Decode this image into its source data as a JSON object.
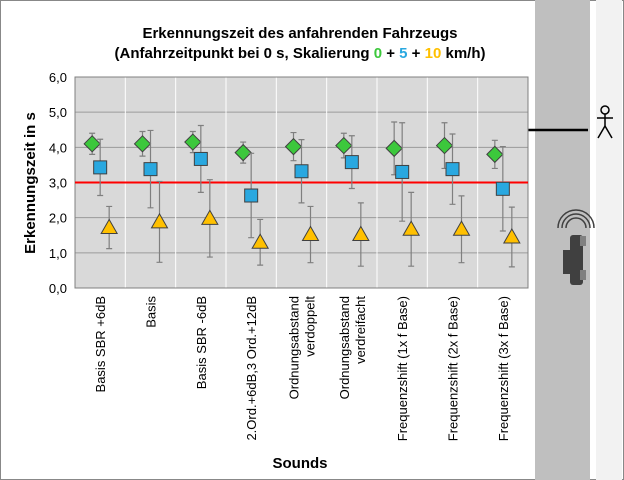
{
  "chart_data": {
    "type": "errorbar",
    "title": "Erkennungszeit des anfahrenden Fahrzeugs",
    "title_prefix": "(Anfahrzeitpunkt bei 0 s, Skalierung ",
    "title_separator": " + ",
    "title_suffix": " km/h)",
    "x_label": "Sounds",
    "y_label": "Erkennungszeit in s",
    "categories": [
      "Basis SBR +6dB",
      "Basis",
      "Basis SBR -6dB",
      "2.Ord.+6dB,3 Ord.+12dB",
      "Ordnungsabstand\nverdoppelt",
      "Ordnungsabstand\nverdreifacht",
      "Frequenzshift (1x f Base)",
      "Frequenzshift (2x f Base)",
      "Frequenzshift (3x f Base)"
    ],
    "series": [
      {
        "name": "0",
        "color": "#3cc83c",
        "marker": "diamond",
        "values": [
          4.1,
          4.1,
          4.15,
          3.85,
          4.02,
          4.05,
          3.97,
          4.05,
          3.8
        ],
        "errors": [
          0.3,
          0.35,
          0.3,
          0.3,
          0.4,
          0.35,
          0.75,
          0.65,
          0.4
        ]
      },
      {
        "name": "5",
        "color": "#29a8e0",
        "marker": "square",
        "values": [
          3.43,
          3.38,
          3.67,
          2.63,
          3.32,
          3.58,
          3.3,
          3.38,
          2.82
        ],
        "errors": [
          0.8,
          1.1,
          0.95,
          1.2,
          0.9,
          0.75,
          1.4,
          1.0,
          1.2
        ]
      },
      {
        "name": "10",
        "color": "#ffc000",
        "marker": "triangle",
        "values": [
          1.72,
          1.88,
          1.98,
          1.3,
          1.52,
          1.52,
          1.67,
          1.67,
          1.45
        ],
        "errors": [
          0.6,
          1.15,
          1.1,
          0.65,
          0.8,
          0.9,
          1.05,
          0.95,
          0.85
        ]
      }
    ],
    "reference_line": 3,
    "reference_color": "#ff0000",
    "ylim": [
      0,
      6
    ],
    "yticks": [
      {
        "value": 0,
        "label": "0,0"
      },
      {
        "value": 1,
        "label": "1,0"
      },
      {
        "value": 2,
        "label": "2,0"
      },
      {
        "value": 3,
        "label": "3,0"
      },
      {
        "value": 4,
        "label": "4,0"
      },
      {
        "value": 5,
        "label": "5,0"
      },
      {
        "value": 6,
        "label": "6,0"
      }
    ],
    "grid": true
  }
}
